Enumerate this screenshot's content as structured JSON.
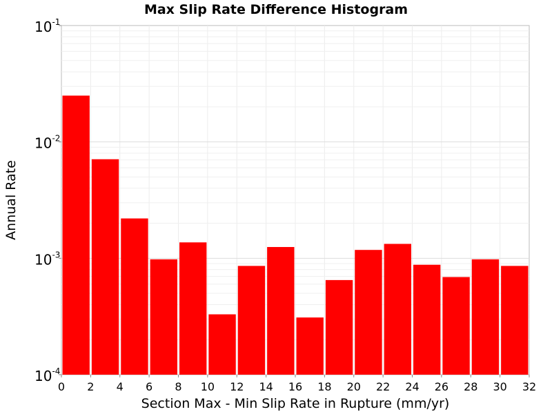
{
  "chart_data": {
    "type": "bar",
    "title": "Max Slip Rate Difference Histogram",
    "xlabel": "Section Max - Min Slip Rate in Rupture (mm/yr)",
    "ylabel": "Annual Rate",
    "x_scale": "linear",
    "y_scale": "log",
    "xlim": [
      0,
      32
    ],
    "ylim": [
      0.0001,
      0.1
    ],
    "x_ticks": [
      0,
      2,
      4,
      6,
      8,
      10,
      12,
      14,
      16,
      18,
      20,
      22,
      24,
      26,
      28,
      30,
      32
    ],
    "y_ticks": [
      {
        "value": 0.1,
        "base": "10",
        "exp": "-1"
      },
      {
        "value": 0.01,
        "base": "10",
        "exp": "-2"
      },
      {
        "value": 0.001,
        "base": "10",
        "exp": "-3"
      },
      {
        "value": 0.0001,
        "base": "10",
        "exp": "-4"
      }
    ],
    "bin_width": 2,
    "bins": [
      {
        "x": 1,
        "value": 0.025
      },
      {
        "x": 3,
        "value": 0.0071
      },
      {
        "x": 5,
        "value": 0.0022
      },
      {
        "x": 7,
        "value": 0.00098
      },
      {
        "x": 9,
        "value": 0.00137
      },
      {
        "x": 11,
        "value": 0.00033
      },
      {
        "x": 13,
        "value": 0.00086
      },
      {
        "x": 15,
        "value": 0.00125
      },
      {
        "x": 17,
        "value": 0.00031
      },
      {
        "x": 19,
        "value": 0.00065
      },
      {
        "x": 21,
        "value": 0.00118
      },
      {
        "x": 23,
        "value": 0.00133
      },
      {
        "x": 25,
        "value": 0.00088
      },
      {
        "x": 27,
        "value": 0.00069
      },
      {
        "x": 29,
        "value": 0.00098
      },
      {
        "x": 31,
        "value": 0.00086
      }
    ],
    "bar_color": "#ff0000",
    "grid": true,
    "legend": false
  }
}
